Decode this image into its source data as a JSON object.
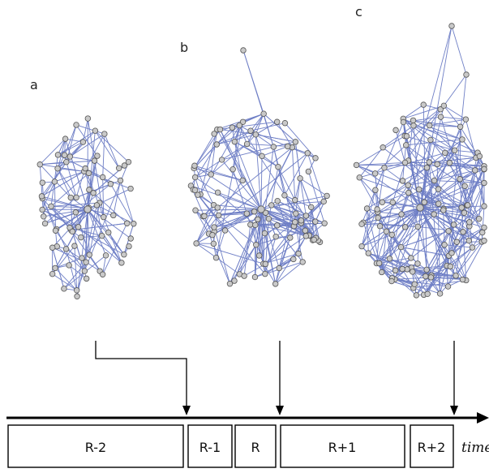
{
  "panels": [
    {
      "label": "a",
      "nodes": 75,
      "hub_edges": 34,
      "other_edges": 145,
      "seed": 11
    },
    {
      "label": "b",
      "nodes": 100,
      "hub_edges": 55,
      "other_edges": 230,
      "seed": 23
    },
    {
      "label": "c",
      "nodes": 120,
      "hub_edges": 70,
      "other_edges": 330,
      "seed": 37
    }
  ],
  "timeline": {
    "axis_label": "time",
    "segments": [
      "R-2",
      "R-1",
      "R",
      "R+1",
      "R+2"
    ]
  },
  "colors": {
    "edge": "#6f7fc6",
    "node_fill": "#c9c9c9",
    "node_stroke": "#555555",
    "axis": "#000000"
  }
}
